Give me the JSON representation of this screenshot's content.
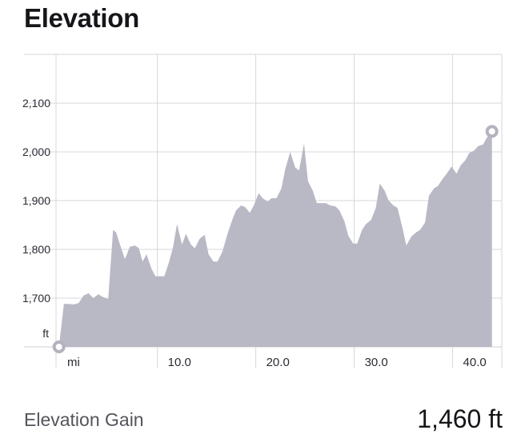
{
  "title": "Elevation",
  "stats": {
    "gain_label": "Elevation Gain",
    "gain_value": "1,460 ft"
  },
  "colors": {
    "area_fill": "#b9b8c5",
    "grid": "#d7d7dc",
    "marker_stroke": "#b3b2bf"
  },
  "chart_data": {
    "type": "area",
    "ylabel": "ft",
    "xlabel": "mi",
    "ylim": [
      1600,
      2200
    ],
    "xlim": [
      -0.3,
      45.0
    ],
    "y_ticks": [
      1700,
      1800,
      1900,
      2000,
      2100
    ],
    "y_tick_labels": [
      "1,700",
      "1,800",
      "1,900",
      "2,000",
      "2,100"
    ],
    "x_ticks": [
      10,
      20,
      30,
      40
    ],
    "x_tick_labels": [
      "10.0",
      "20.0",
      "30.0",
      "40.0"
    ],
    "grid": true,
    "markers": [
      "start",
      "end"
    ],
    "series": [
      {
        "x": [
          0,
          0.5,
          1.0,
          1.5,
          2.0,
          2.5,
          3.0,
          3.5,
          4.0,
          4.5,
          5.0,
          5.5,
          5.8,
          6.2,
          6.7,
          7.2,
          7.7,
          8.1,
          8.5,
          8.9,
          9.4,
          9.8,
          10.2,
          10.7,
          11.2,
          11.6,
          12.0,
          12.5,
          12.9,
          13.4,
          13.8,
          14.3,
          14.8,
          15.2,
          15.7,
          16.1,
          16.6,
          17.1,
          17.6,
          18.0,
          18.5,
          18.9,
          19.4,
          19.8,
          20.3,
          20.7,
          21.2,
          21.6,
          22.1,
          22.6,
          23.0,
          23.5,
          24.0,
          24.4,
          24.9,
          25.3,
          25.8,
          26.2,
          26.7,
          27.1,
          27.6,
          28.1,
          28.5,
          29.0,
          29.4,
          29.9,
          30.3,
          30.8,
          31.2,
          31.7,
          32.2,
          32.6,
          33.1,
          33.5,
          34.0,
          34.4,
          34.9,
          35.3,
          35.8,
          36.3,
          36.7,
          37.2,
          37.6,
          38.1,
          38.5,
          39.0,
          39.4,
          39.9,
          40.4,
          40.8,
          41.3,
          41.7,
          42.2,
          42.6,
          43.1,
          43.5,
          44.0
        ],
        "y": [
          1600,
          1688,
          1688,
          1687,
          1690,
          1705,
          1710,
          1700,
          1708,
          1702,
          1698,
          1840,
          1835,
          1810,
          1780,
          1805,
          1808,
          1803,
          1775,
          1790,
          1760,
          1745,
          1745,
          1745,
          1775,
          1805,
          1852,
          1810,
          1832,
          1810,
          1802,
          1822,
          1830,
          1790,
          1775,
          1775,
          1795,
          1830,
          1860,
          1880,
          1890,
          1887,
          1875,
          1890,
          1915,
          1905,
          1898,
          1905,
          1905,
          1925,
          1965,
          2000,
          1968,
          1962,
          2017,
          1940,
          1920,
          1895,
          1895,
          1895,
          1890,
          1888,
          1880,
          1858,
          1828,
          1812,
          1812,
          1840,
          1852,
          1860,
          1885,
          1935,
          1920,
          1900,
          1890,
          1885,
          1845,
          1808,
          1826,
          1835,
          1840,
          1855,
          1910,
          1925,
          1930,
          1945,
          1955,
          1970,
          1955,
          1972,
          1983,
          1998,
          2003,
          2012,
          2015,
          2030,
          2042
        ]
      }
    ]
  }
}
